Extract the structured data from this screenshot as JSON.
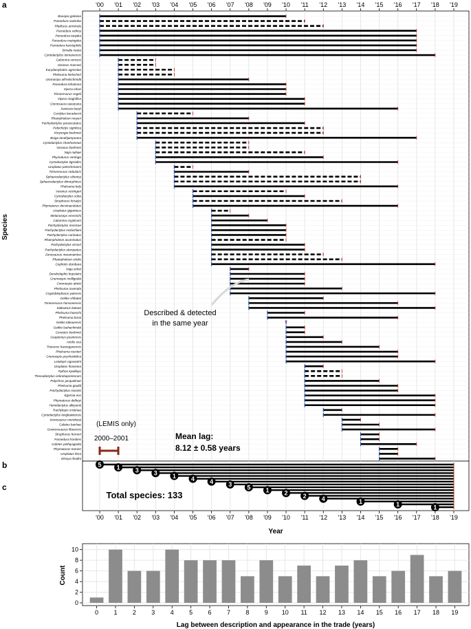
{
  "panel_labels": {
    "a": "a",
    "b": "b",
    "c": "c"
  },
  "chart_data": [
    {
      "type": "timeline",
      "panel": "a",
      "ylabel": "Species",
      "x_ticks": [
        "'00",
        "'01",
        "'02",
        "'03",
        "'04",
        "'05",
        "'06",
        "'07",
        "'08",
        "'09",
        "'10",
        "'11",
        "'12",
        "'13",
        "'14",
        "'15",
        "'16",
        "'17",
        "'18",
        "'19"
      ],
      "xlim": [
        2000,
        2019
      ],
      "annotation_same_year": "Described & detected",
      "annotation_same_year_2": "in the same year",
      "lemis_label": "(LEMIS only)",
      "lemis_range": "2000–2001",
      "mean_lag_title": "Mean lag:",
      "mean_lag_value": "8.12 ± 0.58 years",
      "rows": [
        {
          "species": "Bavayia geitaina",
          "start": 2000,
          "solid_end": 2010,
          "dash_end": null
        },
        {
          "species": "Paroedura vazimba",
          "start": 2000,
          "solid_end": null,
          "dash_end": 2011
        },
        {
          "species": "Phyllurus amnicola",
          "start": 2000,
          "solid_end": null,
          "dash_end": 2012
        },
        {
          "species": "Paroedura vahiny",
          "start": 2000,
          "solid_end": 2017,
          "dash_end": null
        },
        {
          "species": "Paroedura tanjaka",
          "start": 2000,
          "solid_end": 2017,
          "dash_end": null
        },
        {
          "species": "Paroedura maingoka",
          "start": 2000,
          "solid_end": 2017,
          "dash_end": null
        },
        {
          "species": "Paroedura karstophila",
          "start": 2000,
          "solid_end": 2017,
          "dash_end": null
        },
        {
          "species": "Simalia nauta",
          "start": 2000,
          "solid_end": 2017,
          "dash_end": null
        },
        {
          "species": "Cyrtodactylus tiomanensis",
          "start": 2000,
          "solid_end": 2018,
          "dash_end": null
        },
        {
          "species": "Calumma vencesi",
          "start": 2001,
          "solid_end": null,
          "dash_end": 2003
        },
        {
          "species": "Varanus macraei",
          "start": 2001,
          "solid_end": null,
          "dash_end": 2003
        },
        {
          "species": "Eurydactylodes agricolae",
          "start": 2001,
          "solid_end": null,
          "dash_end": 2004
        },
        {
          "species": "Phelsuma hielscheri",
          "start": 2001,
          "solid_end": null,
          "dash_end": 2004
        },
        {
          "species": "Uromastyx alfredschmidti",
          "start": 2001,
          "solid_end": 2008,
          "dash_end": null
        },
        {
          "species": "Paroedura lohatsara",
          "start": 2001,
          "solid_end": 2010,
          "dash_end": null
        },
        {
          "species": "Vipera orlovi",
          "start": 2001,
          "solid_end": 2010,
          "dash_end": null
        },
        {
          "species": "Trimeresurus vogeli",
          "start": 2001,
          "solid_end": 2010,
          "dash_end": null
        },
        {
          "species": "Vipera magnifica",
          "start": 2001,
          "solid_end": 2011,
          "dash_end": null
        },
        {
          "species": "Ctenosaura oaxacana",
          "start": 2001,
          "solid_end": 2011,
          "dash_end": null
        },
        {
          "species": "Xantusia bezyi",
          "start": 2001,
          "solid_end": 2016,
          "dash_end": null
        },
        {
          "species": "Cordylus beraduccii",
          "start": 2002,
          "solid_end": null,
          "dash_end": 2005
        },
        {
          "species": "Rhampholeon moyeri",
          "start": 2002,
          "solid_end": 2008,
          "dash_end": null
        },
        {
          "species": "Pachydactylus parascutatus",
          "start": 2002,
          "solid_end": 2011,
          "dash_end": null
        },
        {
          "species": "Pelochelys signifera",
          "start": 2002,
          "solid_end": null,
          "dash_end": 2012
        },
        {
          "species": "Kinyongia boehmei",
          "start": 2002,
          "solid_end": null,
          "dash_end": 2012
        },
        {
          "species": "Boiga tanahjampeana",
          "start": 2002,
          "solid_end": 2017,
          "dash_end": null
        },
        {
          "species": "Cyrtodactylus chanhomeae",
          "start": 2003,
          "solid_end": null,
          "dash_end": 2008
        },
        {
          "species": "Varanus boehmei",
          "start": 2003,
          "solid_end": null,
          "dash_end": 2008
        },
        {
          "species": "Naja nubiae",
          "start": 2003,
          "solid_end": null,
          "dash_end": 2011
        },
        {
          "species": "Phymaturus verdugo",
          "start": 2003,
          "solid_end": 2012,
          "dash_end": null
        },
        {
          "species": "Cyrtodactylus tigroides",
          "start": 2003,
          "solid_end": 2016,
          "dash_end": null
        },
        {
          "species": "Uroplatus pietschmanni",
          "start": 2004,
          "solid_end": null,
          "dash_end": 2005
        },
        {
          "species": "Trimeresurus nebularis",
          "start": 2004,
          "solid_end": 2008,
          "dash_end": null
        },
        {
          "species": "Sphaerodactylus siboney",
          "start": 2004,
          "solid_end": null,
          "dash_end": 2014
        },
        {
          "species": "Sphaerodactylus dimorphicus",
          "start": 2004,
          "solid_end": null,
          "dash_end": 2014
        },
        {
          "species": "Phelsuma kely",
          "start": 2004,
          "solid_end": 2016,
          "dash_end": null
        },
        {
          "species": "Varanus reisingeri",
          "start": 2005,
          "solid_end": null,
          "dash_end": 2010
        },
        {
          "species": "Cyrtodactylus soba",
          "start": 2005,
          "solid_end": 2011,
          "dash_end": null
        },
        {
          "species": "Strophurus krisalys",
          "start": 2005,
          "solid_end": null,
          "dash_end": 2013
        },
        {
          "species": "Phymaturus dorsimaculatus",
          "start": 2005,
          "solid_end": 2016,
          "dash_end": null
        },
        {
          "species": "Uroplatus giganteus",
          "start": 2006,
          "solid_end": null,
          "dash_end": 2007
        },
        {
          "species": "Melanoseps emmrichi",
          "start": 2006,
          "solid_end": 2008,
          "dash_end": null
        },
        {
          "species": "Calumma crypticum",
          "start": 2006,
          "solid_end": 2009,
          "dash_end": null
        },
        {
          "species": "Pachydactylus monicae",
          "start": 2006,
          "solid_end": 2010,
          "dash_end": null
        },
        {
          "species": "Pachydactylus mclachlani",
          "start": 2006,
          "solid_end": 2010,
          "dash_end": null
        },
        {
          "species": "Pachydactylus carinatus",
          "start": 2006,
          "solid_end": 2010,
          "dash_end": null
        },
        {
          "species": "Rhampholeon acuminatus",
          "start": 2006,
          "solid_end": null,
          "dash_end": 2010
        },
        {
          "species": "Pachydactylus visseri",
          "start": 2006,
          "solid_end": 2011,
          "dash_end": null
        },
        {
          "species": "Pachydactylus atorquatus",
          "start": 2006,
          "solid_end": 2011,
          "dash_end": null
        },
        {
          "species": "Zonosaurus maramaintso",
          "start": 2006,
          "solid_end": null,
          "dash_end": 2012
        },
        {
          "species": "Rhampholeon viridis",
          "start": 2006,
          "solid_end": null,
          "dash_end": 2013
        },
        {
          "species": "Cophotis dumbara",
          "start": 2006,
          "solid_end": 2018,
          "dash_end": null
        },
        {
          "species": "Naja ashei",
          "start": 2007,
          "solid_end": 2008,
          "dash_end": null
        },
        {
          "species": "Dendrelaphis kopsteini",
          "start": 2007,
          "solid_end": 2011,
          "dash_end": null
        },
        {
          "species": "Cnemaspis molligodai",
          "start": 2007,
          "solid_end": 2011,
          "dash_end": null
        },
        {
          "species": "Cnemaspis alwisi",
          "start": 2007,
          "solid_end": 2011,
          "dash_end": null
        },
        {
          "species": "Phelsuma ravenala",
          "start": 2007,
          "solid_end": 2013,
          "dash_end": null
        },
        {
          "species": "Cryptoblepharus yulensis",
          "start": 2007,
          "solid_end": 2018,
          "dash_end": null
        },
        {
          "species": "Gekko shibatai",
          "start": 2008,
          "solid_end": 2012,
          "dash_end": null
        },
        {
          "species": "Trimeresurus honsonensis",
          "start": 2008,
          "solid_end": 2016,
          "dash_end": null
        },
        {
          "species": "Saltuarius kateae",
          "start": 2008,
          "solid_end": 2018,
          "dash_end": null
        },
        {
          "species": "Phelsuma hoeschi",
          "start": 2009,
          "solid_end": 2011,
          "dash_end": null
        },
        {
          "species": "Phelsuma borai",
          "start": 2009,
          "solid_end": 2016,
          "dash_end": null
        },
        {
          "species": "Gekko takouensis",
          "start": 2010,
          "solid_end": 2010,
          "dash_end": null
        },
        {
          "species": "Gekko lauhachindai",
          "start": 2010,
          "solid_end": 2011,
          "dash_end": null
        },
        {
          "species": "Cerastes boehmei",
          "start": 2010,
          "solid_end": 2011,
          "dash_end": null
        },
        {
          "species": "Graptemys pearlensis",
          "start": 2010,
          "solid_end": 2012,
          "dash_end": null
        },
        {
          "species": "Anolis osa",
          "start": 2010,
          "solid_end": 2013,
          "dash_end": null
        },
        {
          "species": "Trioceros harenganensis",
          "start": 2010,
          "solid_end": 2015,
          "dash_end": null
        },
        {
          "species": "Phelsuma roesleri",
          "start": 2010,
          "solid_end": 2016,
          "dash_end": null
        },
        {
          "species": "Cnemaspis psychedelica",
          "start": 2010,
          "solid_end": 2016,
          "dash_end": null
        },
        {
          "species": "Leiolepis ngovantrii",
          "start": 2010,
          "solid_end": 2018,
          "dash_end": null
        },
        {
          "species": "Uroplatus finaviana",
          "start": 2011,
          "solid_end": 2012,
          "dash_end": null
        },
        {
          "species": "Python kyaiktiyo",
          "start": 2011,
          "solid_end": null,
          "dash_end": 2013
        },
        {
          "species": "Thecadactylus oskrobapreinorum",
          "start": 2011,
          "solid_end": null,
          "dash_end": 2013
        },
        {
          "species": "Polychrus jacquelinae",
          "start": 2011,
          "solid_end": 2015,
          "dash_end": null
        },
        {
          "species": "Phelsuma gouldi",
          "start": 2011,
          "solid_end": 2016,
          "dash_end": null
        },
        {
          "species": "Pachydactylus maraisi",
          "start": 2011,
          "solid_end": 2016,
          "dash_end": null
        },
        {
          "species": "Egernia eos",
          "start": 2011,
          "solid_end": 2018,
          "dash_end": null
        },
        {
          "species": "Phymaturus delheyi",
          "start": 2011,
          "solid_end": 2018,
          "dash_end": null
        },
        {
          "species": "Hemidactylus alkiyumii",
          "start": 2011,
          "solid_end": 2018,
          "dash_end": null
        },
        {
          "species": "Trachylepis cristinae",
          "start": 2012,
          "solid_end": 2013,
          "dash_end": null
        },
        {
          "species": "Cyrtodactylus langkawiensis",
          "start": 2012,
          "solid_end": 2018,
          "dash_end": null
        },
        {
          "species": "Xenosaurus mendozai",
          "start": 2013,
          "solid_end": 2014,
          "dash_end": null
        },
        {
          "species": "Calotes bachae",
          "start": 2013,
          "solid_end": 2015,
          "dash_end": null
        },
        {
          "species": "Goniurosaurus liboensis",
          "start": 2013,
          "solid_end": 2018,
          "dash_end": null
        },
        {
          "species": "Strophurus horneri",
          "start": 2014,
          "solid_end": 2015,
          "dash_end": null
        },
        {
          "species": "Paroedura hordiesi",
          "start": 2014,
          "solid_end": 2015,
          "dash_end": null
        },
        {
          "species": "Calotes pethiyagodai",
          "start": 2014,
          "solid_end": 2017,
          "dash_end": null
        },
        {
          "species": "Phymaturus tromen",
          "start": 2015,
          "solid_end": 2016,
          "dash_end": null
        },
        {
          "species": "Uroplatus fiera",
          "start": 2015,
          "solid_end": 2016,
          "dash_end": null
        },
        {
          "species": "Elseya rhodini",
          "start": 2015,
          "solid_end": 2018,
          "dash_end": null
        }
      ]
    },
    {
      "type": "lollipop",
      "panel": "b",
      "xlabel": "Year",
      "x_ticks": [
        "'00",
        "'01",
        "'02",
        "'03",
        "'04",
        "'05",
        "'06",
        "'07",
        "'08",
        "'09",
        "'10",
        "'11",
        "'12",
        "'13",
        "'14",
        "'15",
        "'16",
        "'17",
        "'18",
        "'19"
      ],
      "xlim": [
        2000,
        2019
      ],
      "end_year": 2019,
      "total_label": "Total species: 133",
      "points": [
        {
          "start": 2000,
          "count": "5"
        },
        {
          "start": 2001,
          "count": "1"
        },
        {
          "start": 2002,
          "count": "3"
        },
        {
          "start": 2003,
          "count": "3"
        },
        {
          "start": 2004,
          "count": "1"
        },
        {
          "start": 2005,
          "count": "4"
        },
        {
          "start": 2006,
          "count": "4"
        },
        {
          "start": 2007,
          "count": "3"
        },
        {
          "start": 2008,
          "count": "5"
        },
        {
          "start": 2009,
          "count": "1"
        },
        {
          "start": 2010,
          "count": "2"
        },
        {
          "start": 2011,
          "count": "2"
        },
        {
          "start": 2012,
          "count": "4"
        },
        {
          "start": 2014,
          "count": "1"
        },
        {
          "start": 2016,
          "count": "1"
        },
        {
          "start": 2018,
          "count": "1"
        }
      ]
    },
    {
      "type": "bar",
      "panel": "c",
      "xlabel": "Lag between description and appearance in the trade (years)",
      "ylabel": "Count",
      "categories": [
        "0",
        "1",
        "2",
        "3",
        "4",
        "5",
        "6",
        "7",
        "8",
        "9",
        "10",
        "11",
        "12",
        "13",
        "14",
        "15",
        "16",
        "17",
        "18",
        "19"
      ],
      "values": [
        1,
        10,
        6,
        6,
        10,
        8,
        8,
        8,
        5,
        8,
        5,
        7,
        5,
        7,
        8,
        5,
        6,
        9,
        5,
        6
      ],
      "yticks": [
        "0",
        "2",
        "4",
        "6",
        "8",
        "10"
      ],
      "ylim": [
        0,
        10.6
      ]
    }
  ]
}
